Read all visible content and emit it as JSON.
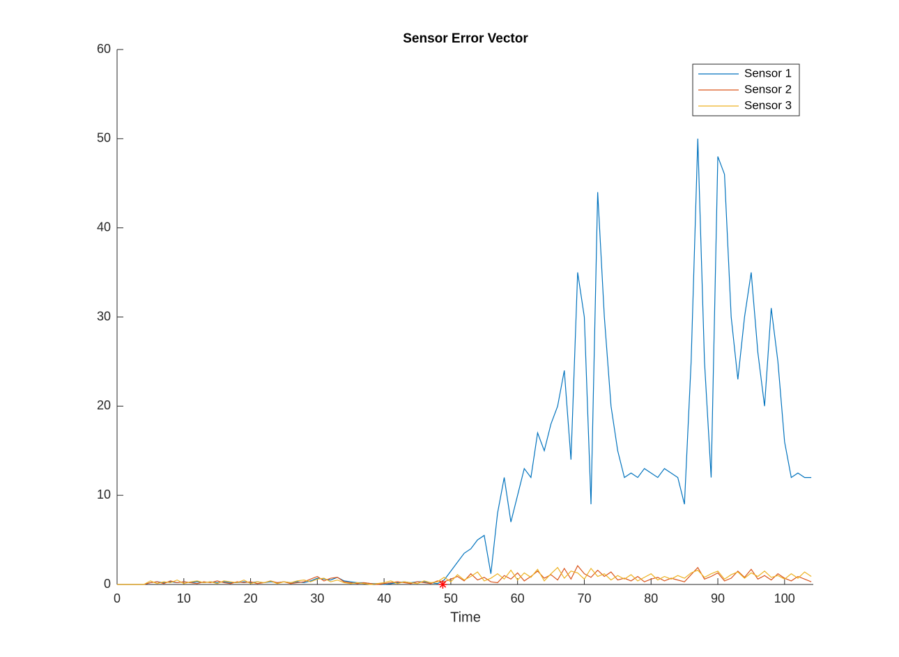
{
  "chart_data": {
    "type": "line",
    "title": "Sensor Error Vector",
    "x_label": "Time",
    "x": [
      0,
      1,
      2,
      3,
      4,
      5,
      6,
      7,
      8,
      9,
      10,
      11,
      12,
      13,
      14,
      15,
      16,
      17,
      18,
      19,
      20,
      21,
      22,
      23,
      24,
      25,
      26,
      27,
      28,
      29,
      30,
      31,
      32,
      33,
      34,
      35,
      36,
      37,
      38,
      39,
      40,
      41,
      42,
      43,
      44,
      45,
      46,
      47,
      48,
      49,
      50,
      51,
      52,
      53,
      54,
      55,
      56,
      57,
      58,
      59,
      60,
      61,
      62,
      63,
      64,
      65,
      66,
      67,
      68,
      69,
      70,
      71,
      72,
      73,
      74,
      75,
      76,
      77,
      78,
      79,
      80,
      81,
      82,
      83,
      84,
      85,
      86,
      87,
      88,
      89,
      90,
      91,
      92,
      93,
      94,
      95,
      96,
      97,
      98,
      99,
      100,
      101,
      102,
      103,
      104
    ],
    "series": [
      {
        "name": "Sensor 1",
        "color": "#0072bd",
        "values": [
          0,
          0,
          0,
          0,
          0,
          0.2,
          0.3,
          0.2,
          0.3,
          0.2,
          0.3,
          0.2,
          0.3,
          0.2,
          0.3,
          0.2,
          0.3,
          0.2,
          0.2,
          0.3,
          0.2,
          0.3,
          0.2,
          0.3,
          0.2,
          0.3,
          0.2,
          0.3,
          0.2,
          0.4,
          0.7,
          0.6,
          0.5,
          0.8,
          0.4,
          0.3,
          0.2,
          0.2,
          0.1,
          0.1,
          0,
          0.1,
          0.2,
          0.3,
          0.2,
          0.3,
          0.3,
          0.2,
          0.1,
          0.5,
          1.5,
          2.5,
          3.5,
          4,
          5,
          5.5,
          1.2,
          8,
          12,
          7,
          10,
          13,
          12,
          17,
          15,
          18,
          20,
          24,
          14,
          35,
          30,
          9,
          44,
          30,
          20,
          15,
          12,
          12.5,
          12,
          13,
          12.5,
          12,
          13,
          12.5,
          12,
          9,
          25,
          50,
          25,
          12,
          48,
          46,
          30,
          23,
          30,
          35,
          26,
          20,
          31,
          25,
          16,
          12,
          12.5,
          12,
          12
        ]
      },
      {
        "name": "Sensor 2",
        "color": "#d95319",
        "values": [
          0,
          0,
          0,
          0,
          0,
          0.2,
          0.3,
          0.1,
          0.4,
          0.2,
          0.3,
          0.2,
          0.1,
          0.3,
          0.2,
          0.4,
          0.2,
          0.1,
          0.3,
          0.2,
          0.3,
          0.1,
          0.2,
          0.4,
          0.2,
          0.3,
          0.1,
          0.2,
          0.3,
          0.6,
          0.9,
          0.4,
          0.7,
          0.8,
          0.3,
          0.2,
          0.1,
          0.2,
          0.1,
          0,
          0.1,
          0.2,
          0.3,
          0.2,
          0.1,
          0.3,
          0.2,
          0.1,
          0.4,
          0.3,
          0.6,
          0.9,
          0.4,
          1.2,
          0.5,
          0.8,
          0.3,
          0.2,
          1.0,
          0.6,
          1.3,
          0.4,
          0.9,
          1.5,
          0.7,
          1.1,
          0.5,
          1.8,
          0.6,
          2.1,
          1.2,
          0.8,
          1.6,
          0.9,
          1.4,
          0.5,
          0.7,
          0.4,
          0.9,
          0.3,
          0.6,
          0.8,
          0.4,
          0.7,
          0.5,
          0.3,
          1.1,
          1.9,
          0.6,
          0.9,
          1.3,
          0.4,
          0.7,
          1.5,
          0.8,
          1.7,
          0.6,
          1.0,
          0.5,
          1.2,
          0.7,
          0.4,
          0.9,
          0.6,
          0.3
        ]
      },
      {
        "name": "Sensor 3",
        "color": "#edb120",
        "values": [
          0,
          0,
          0,
          0,
          0,
          0.4,
          0.1,
          0.3,
          0.2,
          0.5,
          0.1,
          0.3,
          0.4,
          0.2,
          0.3,
          0.1,
          0.4,
          0.3,
          0.2,
          0.5,
          0.1,
          0.3,
          0.2,
          0.4,
          0.1,
          0.3,
          0.2,
          0.4,
          0.5,
          0.3,
          0.6,
          0.7,
          0.3,
          0.5,
          0.2,
          0.1,
          0.2,
          0.1,
          0,
          0.1,
          0.2,
          0.4,
          0.1,
          0.3,
          0.2,
          0.1,
          0.4,
          0.2,
          0.3,
          0.8,
          0.3,
          1.1,
          0.5,
          0.9,
          1.4,
          0.4,
          0.7,
          1.2,
          0.6,
          1.6,
          0.5,
          1.3,
          0.8,
          1.7,
          0.4,
          1.2,
          1.9,
          0.7,
          1.5,
          1.3,
          0.6,
          1.8,
          0.9,
          1.2,
          0.5,
          1.0,
          0.6,
          1.1,
          0.4,
          0.8,
          1.2,
          0.5,
          0.9,
          0.6,
          1.0,
          0.7,
          1.3,
          1.6,
          0.8,
          1.2,
          1.5,
          0.6,
          1.1,
          1.4,
          0.7,
          1.3,
          0.9,
          1.5,
          0.8,
          1.0,
          0.6,
          1.2,
          0.7,
          1.4,
          0.9
        ]
      }
    ],
    "marker": {
      "x": 48.8,
      "y": 0,
      "color": "#ff0000"
    },
    "xlim": [
      0,
      104.3
    ],
    "xticks": [
      0,
      10,
      20,
      30,
      40,
      50,
      60,
      70,
      80,
      90,
      100
    ],
    "ylim": [
      0,
      60
    ],
    "yticks": [
      0,
      10,
      20,
      30,
      40,
      50,
      60
    ],
    "legend": "northeast"
  }
}
